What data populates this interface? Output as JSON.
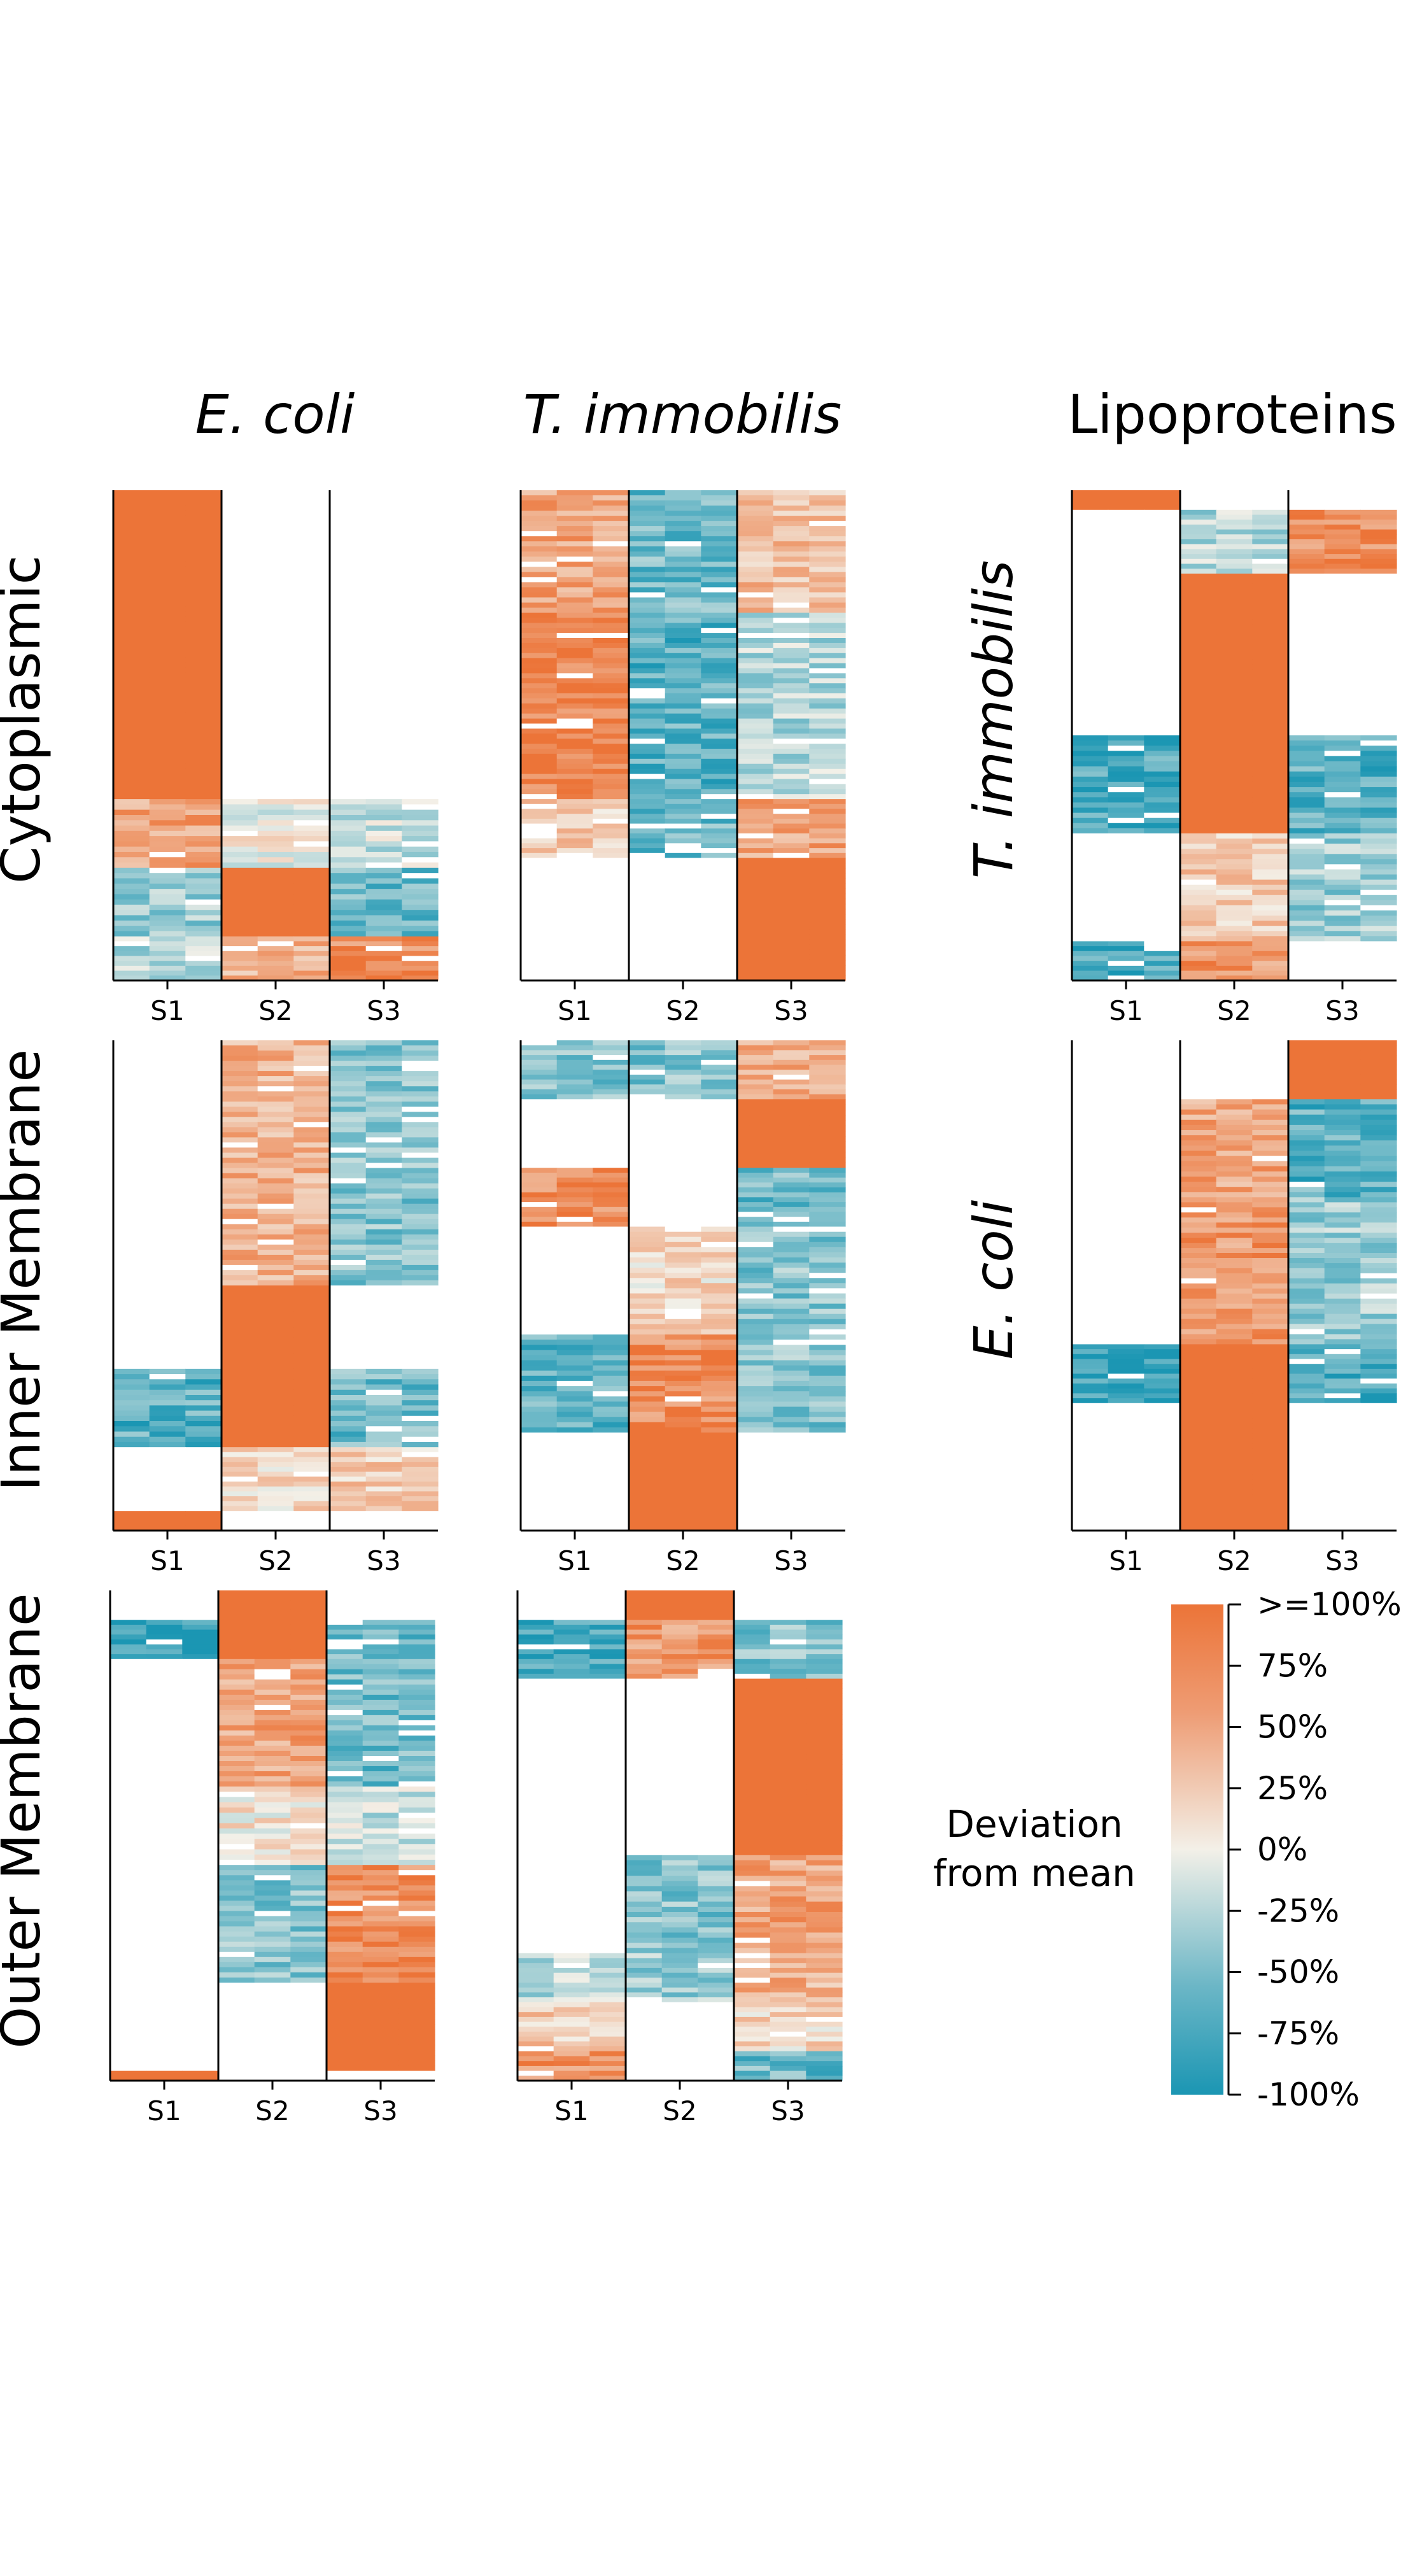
{
  "figure": {
    "column_titles": [
      "E. coli",
      "T. immobilis",
      "Lipoproteins"
    ],
    "row_titles": [
      "Cytoplasmic",
      "Inner Membrane",
      "Outer Membrane"
    ],
    "lipo_row_titles": [
      "T. immobilis",
      "E. coli"
    ]
  },
  "colors": {
    "high": "#ec7438",
    "low": "#1b96b3",
    "mid": "#f3f0e8",
    "missing": "#ffffff",
    "frame": "#000000"
  },
  "chart_data": {
    "type": "heatmap",
    "sample_labels": [
      "S1",
      "S2",
      "S3"
    ],
    "description_units": "deviation from mean (fraction, -1 = -100%, 1 = >=100%); null = missing",
    "colorbar": {
      "title_lines": [
        "Deviation",
        "from mean"
      ],
      "ticks": [
        ">=100%",
        "75%",
        "50%",
        "25%",
        "0%",
        "-25%",
        "-50%",
        "-75%",
        "-100%"
      ],
      "range": [
        -1,
        1
      ]
    },
    "panels": [
      {
        "id": "cyto-ecoli",
        "row": "Cytoplasmic",
        "column": "E. coli",
        "segments": [
          {
            "frac": 0.63,
            "s1": 1.0,
            "s2": null,
            "s3": null
          },
          {
            "frac": 0.14,
            "s1": 0.6,
            "s2": 0.0,
            "s3": -0.2
          },
          {
            "frac": 0.14,
            "s1": -0.4,
            "s2": 1.0,
            "s3": -0.6
          },
          {
            "frac": 0.09,
            "s1": -0.3,
            "s2": 0.5,
            "s3": 0.8
          }
        ]
      },
      {
        "id": "cyto-timm",
        "row": "Cytoplasmic",
        "column": "T. immobilis",
        "segments": [
          {
            "frac": 0.25,
            "s1": 0.6,
            "s2": -0.6,
            "s3": 0.4
          },
          {
            "frac": 0.38,
            "s1": 0.9,
            "s2": -0.7,
            "s3": -0.3
          },
          {
            "frac": 0.12,
            "s1": 0.3,
            "s2": -0.6,
            "s3": 0.6
          },
          {
            "frac": 0.25,
            "s1": null,
            "s2": null,
            "s3": 1.0
          }
        ]
      },
      {
        "id": "lipo-timm",
        "row": "Cytoplasmic",
        "column": "Lipoproteins",
        "species": "T. immobilis",
        "segments": [
          {
            "frac": 0.04,
            "s1": 1.0,
            "s2": null,
            "s3": null
          },
          {
            "frac": 0.13,
            "s1": null,
            "s2": -0.3,
            "s3": 0.8
          },
          {
            "frac": 0.33,
            "s1": null,
            "s2": 1.0,
            "s3": null
          },
          {
            "frac": 0.2,
            "s1": -0.8,
            "s2": 1.0,
            "s3": -0.7
          },
          {
            "frac": 0.22,
            "s1": null,
            "s2": 0.3,
            "s3": -0.4
          },
          {
            "frac": 0.08,
            "s1": -0.8,
            "s2": 0.7,
            "s3": null
          }
        ]
      },
      {
        "id": "inner-ecoli",
        "row": "Inner Membrane",
        "column": "E. coli",
        "segments": [
          {
            "frac": 0.5,
            "s1": null,
            "s2": 0.5,
            "s3": -0.5
          },
          {
            "frac": 0.17,
            "s1": null,
            "s2": 1.0,
            "s3": null
          },
          {
            "frac": 0.16,
            "s1": -0.7,
            "s2": 1.0,
            "s3": -0.6
          },
          {
            "frac": 0.13,
            "s1": null,
            "s2": 0.2,
            "s3": 0.3
          },
          {
            "frac": 0.04,
            "s1": 1.0,
            "s2": null,
            "s3": null
          }
        ]
      },
      {
        "id": "inner-timm",
        "row": "Inner Membrane",
        "column": "T. immobilis",
        "segments": [
          {
            "frac": 0.12,
            "s1": -0.5,
            "s2": -0.5,
            "s3": 0.5
          },
          {
            "frac": 0.14,
            "s1": null,
            "s2": null,
            "s3": 1.0
          },
          {
            "frac": 0.12,
            "s1": 0.8,
            "s2": null,
            "s3": -0.6
          },
          {
            "frac": 0.22,
            "s1": null,
            "s2": 0.2,
            "s3": -0.5
          },
          {
            "frac": 0.2,
            "s1": -0.7,
            "s2": 0.8,
            "s3": -0.5
          },
          {
            "frac": 0.2,
            "s1": null,
            "s2": 1.0,
            "s3": null
          }
        ]
      },
      {
        "id": "lipo-ecoli",
        "row": "Inner Membrane",
        "column": "Lipoproteins",
        "species": "E. coli",
        "segments": [
          {
            "frac": 0.12,
            "s1": null,
            "s2": null,
            "s3": 1.0
          },
          {
            "frac": 0.2,
            "s1": null,
            "s2": 0.6,
            "s3": -0.7
          },
          {
            "frac": 0.3,
            "s1": null,
            "s2": 0.7,
            "s3": -0.4
          },
          {
            "frac": 0.12,
            "s1": -0.9,
            "s2": 1.0,
            "s3": -0.8
          },
          {
            "frac": 0.26,
            "s1": null,
            "s2": 1.0,
            "s3": null
          }
        ]
      },
      {
        "id": "outer-ecoli",
        "row": "Outer Membrane",
        "column": "E. coli",
        "segments": [
          {
            "frac": 0.06,
            "s1": null,
            "s2": 1.0,
            "s3": null
          },
          {
            "frac": 0.08,
            "s1": -0.9,
            "s2": 1.0,
            "s3": -0.6
          },
          {
            "frac": 0.26,
            "s1": null,
            "s2": 0.6,
            "s3": -0.6
          },
          {
            "frac": 0.16,
            "s1": null,
            "s2": 0.1,
            "s3": -0.2
          },
          {
            "frac": 0.24,
            "s1": null,
            "s2": -0.5,
            "s3": 0.8
          },
          {
            "frac": 0.18,
            "s1": null,
            "s2": null,
            "s3": 1.0
          },
          {
            "frac": 0.02,
            "s1": 1.0,
            "s2": null,
            "s3": null
          }
        ]
      },
      {
        "id": "outer-timm",
        "row": "Outer Membrane",
        "column": "T. immobilis",
        "segments": [
          {
            "frac": 0.06,
            "s1": null,
            "s2": 1.0,
            "s3": null
          },
          {
            "frac": 0.12,
            "s1": -0.8,
            "s2": 0.7,
            "s3": -0.5
          },
          {
            "frac": 0.36,
            "s1": null,
            "s2": null,
            "s3": 1.0
          },
          {
            "frac": 0.2,
            "s1": null,
            "s2": -0.5,
            "s3": 0.6
          },
          {
            "frac": 0.1,
            "s1": -0.3,
            "s2": -0.4,
            "s3": 0.5
          },
          {
            "frac": 0.1,
            "s1": 0.3,
            "s2": null,
            "s3": 0.2
          },
          {
            "frac": 0.06,
            "s1": 0.7,
            "s2": null,
            "s3": -0.6
          }
        ]
      }
    ]
  }
}
